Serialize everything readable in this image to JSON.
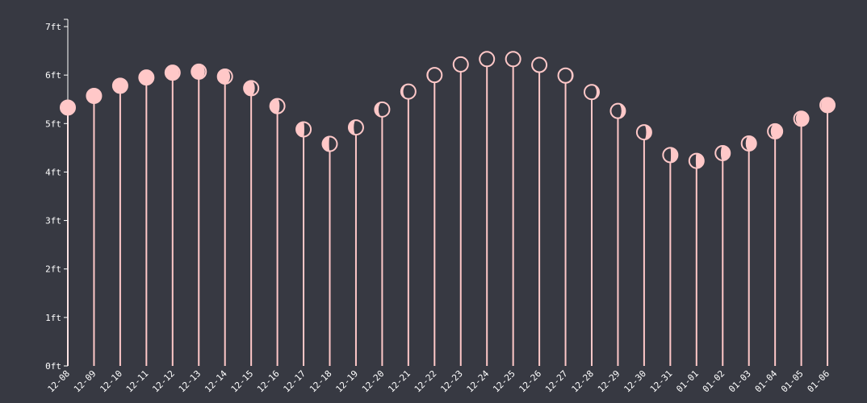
{
  "chart_data": {
    "type": "lollipop",
    "categories": [
      "12-08",
      "12-09",
      "12-10",
      "12-11",
      "12-12",
      "12-13",
      "12-14",
      "12-15",
      "12-16",
      "12-17",
      "12-18",
      "12-19",
      "12-20",
      "12-21",
      "12-22",
      "12-23",
      "12-24",
      "12-25",
      "12-26",
      "12-27",
      "12-28",
      "12-29",
      "12-30",
      "12-31",
      "01-01",
      "01-02",
      "01-03",
      "01-04",
      "01-05",
      "01-06"
    ],
    "values": [
      5.33,
      5.57,
      5.78,
      5.95,
      6.05,
      6.07,
      5.97,
      5.73,
      5.36,
      4.88,
      4.58,
      4.92,
      5.29,
      5.66,
      6.0,
      6.22,
      6.33,
      6.33,
      6.21,
      5.99,
      5.65,
      5.26,
      4.82,
      4.35,
      4.23,
      4.39,
      4.59,
      4.84,
      5.1,
      5.38
    ],
    "moon_illumination": [
      0.95,
      0.99,
      1.0,
      0.98,
      0.95,
      0.92,
      0.85,
      0.75,
      0.65,
      0.55,
      0.45,
      0.35,
      0.25,
      0.15,
      0.07,
      0.02,
      0.0,
      0.01,
      0.04,
      0.09,
      0.17,
      0.26,
      0.36,
      0.46,
      0.55,
      0.63,
      0.72,
      0.8,
      0.88,
      0.94
    ],
    "waxing": [
      true,
      true,
      false,
      false,
      false,
      false,
      false,
      false,
      false,
      false,
      false,
      false,
      false,
      false,
      false,
      false,
      false,
      true,
      true,
      true,
      true,
      true,
      true,
      true,
      true,
      true,
      true,
      true,
      true,
      true
    ],
    "y_ticks": [
      "0ft",
      "1ft",
      "2ft",
      "3ft",
      "4ft",
      "5ft",
      "6ft",
      "7ft"
    ],
    "ylim": [
      0,
      7
    ],
    "title": "",
    "xlabel": "",
    "ylabel": "",
    "grid": false,
    "colors": {
      "background": "#373942",
      "mark": "#ffc8c8",
      "axis": "#ffffff",
      "text": "#ffffff"
    }
  }
}
